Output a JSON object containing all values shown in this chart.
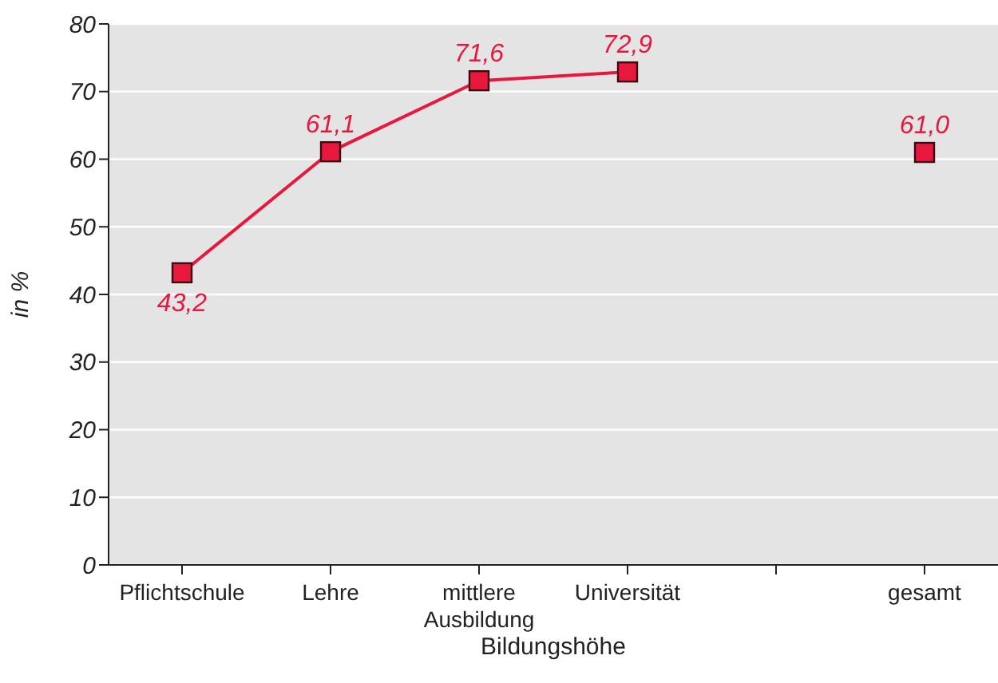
{
  "chart_data": {
    "type": "line",
    "xlabel": "Bildungshöhe",
    "ylabel": "in %",
    "categories": [
      "Pflichtschule",
      "Lehre",
      "mittlere Ausbildung",
      "Universität",
      null,
      "gesamt"
    ],
    "series": [
      {
        "color": "#e8173c",
        "values": [
          43.2,
          61.1,
          71.6,
          72.9,
          null,
          61.0
        ],
        "value_labels": [
          "43,2",
          "61,1",
          "71,6",
          "72,9",
          null,
          "61,0"
        ]
      }
    ],
    "ylim": [
      0,
      80
    ],
    "yticks": [
      0,
      10,
      20,
      30,
      40,
      50,
      60,
      70,
      80
    ],
    "grid": "y",
    "marker": "square",
    "line_style": "solid",
    "legend": false
  }
}
